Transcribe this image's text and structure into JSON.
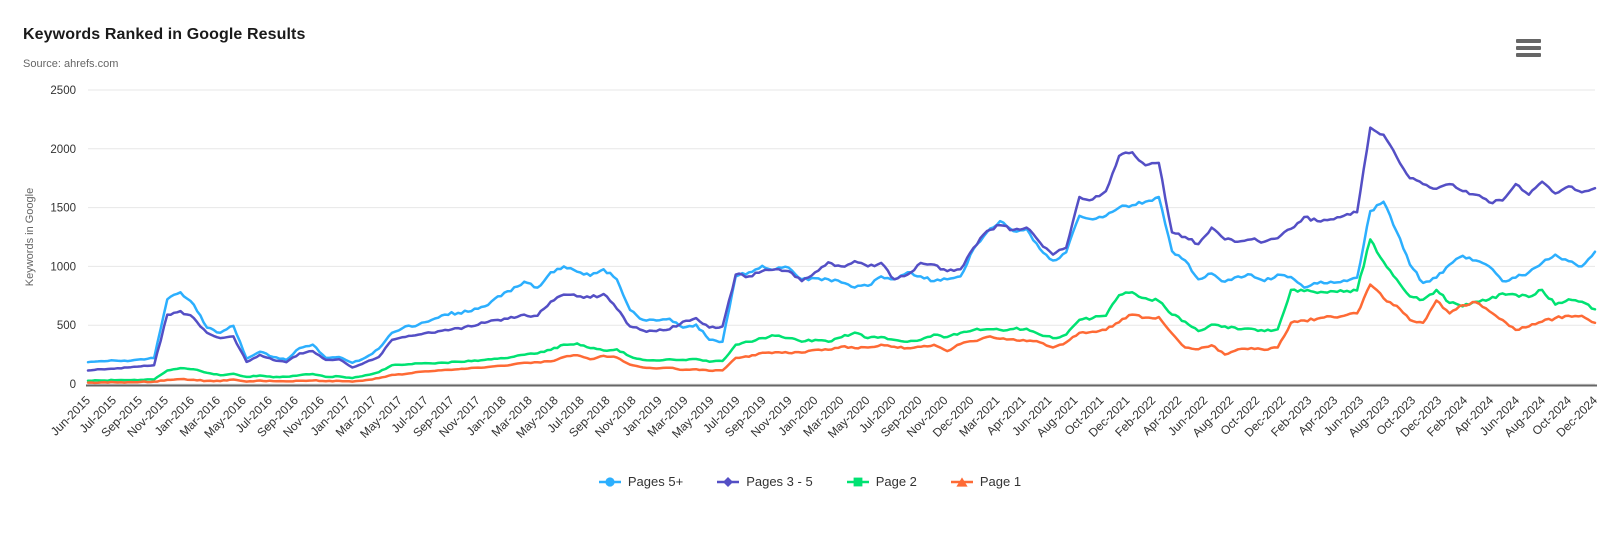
{
  "header": {
    "title": "Keywords Ranked in Google Results",
    "subtitle": "Source: ahrefs.com"
  },
  "icons": {
    "context_menu": "hamburger-menu"
  },
  "chart_data": {
    "type": "line",
    "title": "Keywords Ranked in Google Results",
    "subtitle": "Source: ahrefs.com",
    "xlabel": "",
    "ylabel": "Keywords in Google",
    "ylim": [
      0,
      2500
    ],
    "yticks": [
      0,
      500,
      1000,
      1500,
      2000,
      2500
    ],
    "grid": "horizontal",
    "legend_position": "bottom-center",
    "x_start": "Jun-2015",
    "x_end": "Dec-2024",
    "x_interval": "monthly",
    "x_tick_labels": [
      "Jun-2015",
      "Jul-2015",
      "Sep-2015",
      "Nov-2015",
      "Jan-2016",
      "Mar-2016",
      "May-2016",
      "Jul-2016",
      "Sep-2016",
      "Nov-2016",
      "Jan-2017",
      "Mar-2017",
      "May-2017",
      "Jul-2017",
      "Sep-2017",
      "Nov-2017",
      "Jan-2018",
      "Mar-2018",
      "May-2018",
      "Jul-2018",
      "Sep-2018",
      "Nov-2018",
      "Jan-2019",
      "Mar-2019",
      "May-2019",
      "Jul-2019",
      "Sep-2019",
      "Nov-2019",
      "Jan-2020",
      "Mar-2020",
      "May-2020",
      "Jul-2020",
      "Sep-2020",
      "Nov-2020",
      "Dec-2020",
      "Mar-2021",
      "Apr-2021",
      "Jun-2021",
      "Aug-2021",
      "Oct-2021",
      "Dec-2021",
      "Feb-2022",
      "Apr-2022",
      "Jun-2022",
      "Aug-2022",
      "Oct-2022",
      "Dec-2022",
      "Feb-2023",
      "Apr-2023",
      "Jun-2023",
      "Aug-2023",
      "Oct-2023",
      "Dec-2023",
      "Feb-2024",
      "Apr-2024",
      "Jun-2024",
      "Aug-2024",
      "Oct-2024",
      "Dec-2024"
    ],
    "series": [
      {
        "name": "Pages 5+",
        "color": "#2caffe",
        "marker": "circle",
        "values": [
          185,
          195,
          200,
          195,
          210,
          220,
          720,
          780,
          675,
          480,
          435,
          495,
          215,
          275,
          230,
          205,
          305,
          335,
          222,
          230,
          180,
          225,
          300,
          435,
          490,
          505,
          545,
          590,
          605,
          620,
          660,
          745,
          790,
          870,
          820,
          950,
          1000,
          955,
          920,
          975,
          890,
          630,
          545,
          540,
          555,
          480,
          505,
          376,
          360,
          915,
          950,
          1005,
          975,
          990,
          890,
          900,
          890,
          863,
          820,
          835,
          915,
          890,
          950,
          915,
          875,
          890,
          915,
          1150,
          1290,
          1385,
          1300,
          1320,
          1150,
          1050,
          1120,
          1430,
          1400,
          1430,
          1500,
          1520,
          1550,
          1590,
          1130,
          1050,
          890,
          940,
          870,
          915,
          930,
          875,
          930,
          910,
          820,
          855,
          870,
          880,
          905,
          1470,
          1550,
          1295,
          1015,
          860,
          905,
          1015,
          1090,
          1050,
          1000,
          875,
          905,
          950,
          1030,
          1100,
          1045,
          1000,
          1125
        ]
      },
      {
        "name": "Pages 3 - 5",
        "color": "#544fc5",
        "marker": "diamond",
        "values": [
          115,
          125,
          130,
          140,
          150,
          160,
          590,
          620,
          560,
          435,
          390,
          405,
          188,
          248,
          205,
          185,
          260,
          280,
          205,
          210,
          140,
          185,
          230,
          375,
          400,
          420,
          435,
          460,
          475,
          490,
          520,
          545,
          570,
          590,
          580,
          700,
          760,
          745,
          735,
          765,
          640,
          490,
          455,
          450,
          465,
          530,
          560,
          480,
          490,
          930,
          915,
          960,
          975,
          960,
          875,
          950,
          1035,
          1000,
          1045,
          1000,
          1030,
          890,
          930,
          1030,
          1015,
          960,
          975,
          1160,
          1300,
          1350,
          1310,
          1330,
          1205,
          1100,
          1160,
          1590,
          1570,
          1640,
          1940,
          1970,
          1860,
          1880,
          1290,
          1250,
          1190,
          1330,
          1230,
          1210,
          1230,
          1210,
          1240,
          1320,
          1420,
          1385,
          1400,
          1430,
          1460,
          2180,
          2120,
          1930,
          1750,
          1700,
          1660,
          1700,
          1640,
          1610,
          1545,
          1560,
          1700,
          1610,
          1720,
          1620,
          1680,
          1630,
          1665
        ]
      },
      {
        "name": "Page 2",
        "color": "#00e272",
        "marker": "square",
        "values": [
          28,
          30,
          32,
          33,
          35,
          38,
          115,
          135,
          125,
          95,
          75,
          88,
          60,
          72,
          58,
          62,
          75,
          85,
          60,
          65,
          50,
          75,
          100,
          160,
          165,
          175,
          175,
          180,
          190,
          195,
          205,
          215,
          228,
          248,
          260,
          290,
          335,
          345,
          305,
          285,
          295,
          235,
          205,
          200,
          210,
          205,
          213,
          190,
          196,
          333,
          360,
          390,
          410,
          390,
          360,
          375,
          360,
          398,
          437,
          390,
          400,
          375,
          360,
          375,
          420,
          400,
          435,
          460,
          465,
          460,
          468,
          470,
          420,
          390,
          420,
          545,
          560,
          580,
          755,
          780,
          730,
          705,
          590,
          530,
          450,
          505,
          490,
          465,
          470,
          450,
          465,
          800,
          790,
          775,
          790,
          785,
          795,
          1230,
          1040,
          890,
          745,
          718,
          800,
          690,
          660,
          700,
          720,
          770,
          760,
          740,
          800,
          675,
          720,
          700,
          635
        ]
      },
      {
        "name": "Page 1",
        "color": "#fe6a35",
        "marker": "triangle",
        "values": [
          12,
          14,
          15,
          15,
          18,
          20,
          35,
          42,
          36,
          26,
          25,
          38,
          20,
          30,
          25,
          22,
          28,
          30,
          24,
          26,
          20,
          33,
          50,
          77,
          85,
          103,
          110,
          120,
          125,
          137,
          140,
          154,
          162,
          180,
          185,
          192,
          230,
          245,
          210,
          240,
          225,
          165,
          140,
          132,
          138,
          120,
          126,
          112,
          116,
          222,
          232,
          265,
          270,
          264,
          267,
          290,
          292,
          318,
          305,
          310,
          334,
          316,
          305,
          316,
          333,
          280,
          340,
          365,
          400,
          385,
          380,
          365,
          355,
          310,
          355,
          435,
          445,
          460,
          525,
          590,
          565,
          570,
          430,
          310,
          295,
          330,
          250,
          295,
          305,
          290,
          310,
          520,
          540,
          555,
          575,
          580,
          600,
          845,
          730,
          665,
          545,
          520,
          710,
          600,
          670,
          695,
          620,
          545,
          460,
          490,
          530,
          560,
          580,
          580,
          520
        ]
      }
    ]
  }
}
